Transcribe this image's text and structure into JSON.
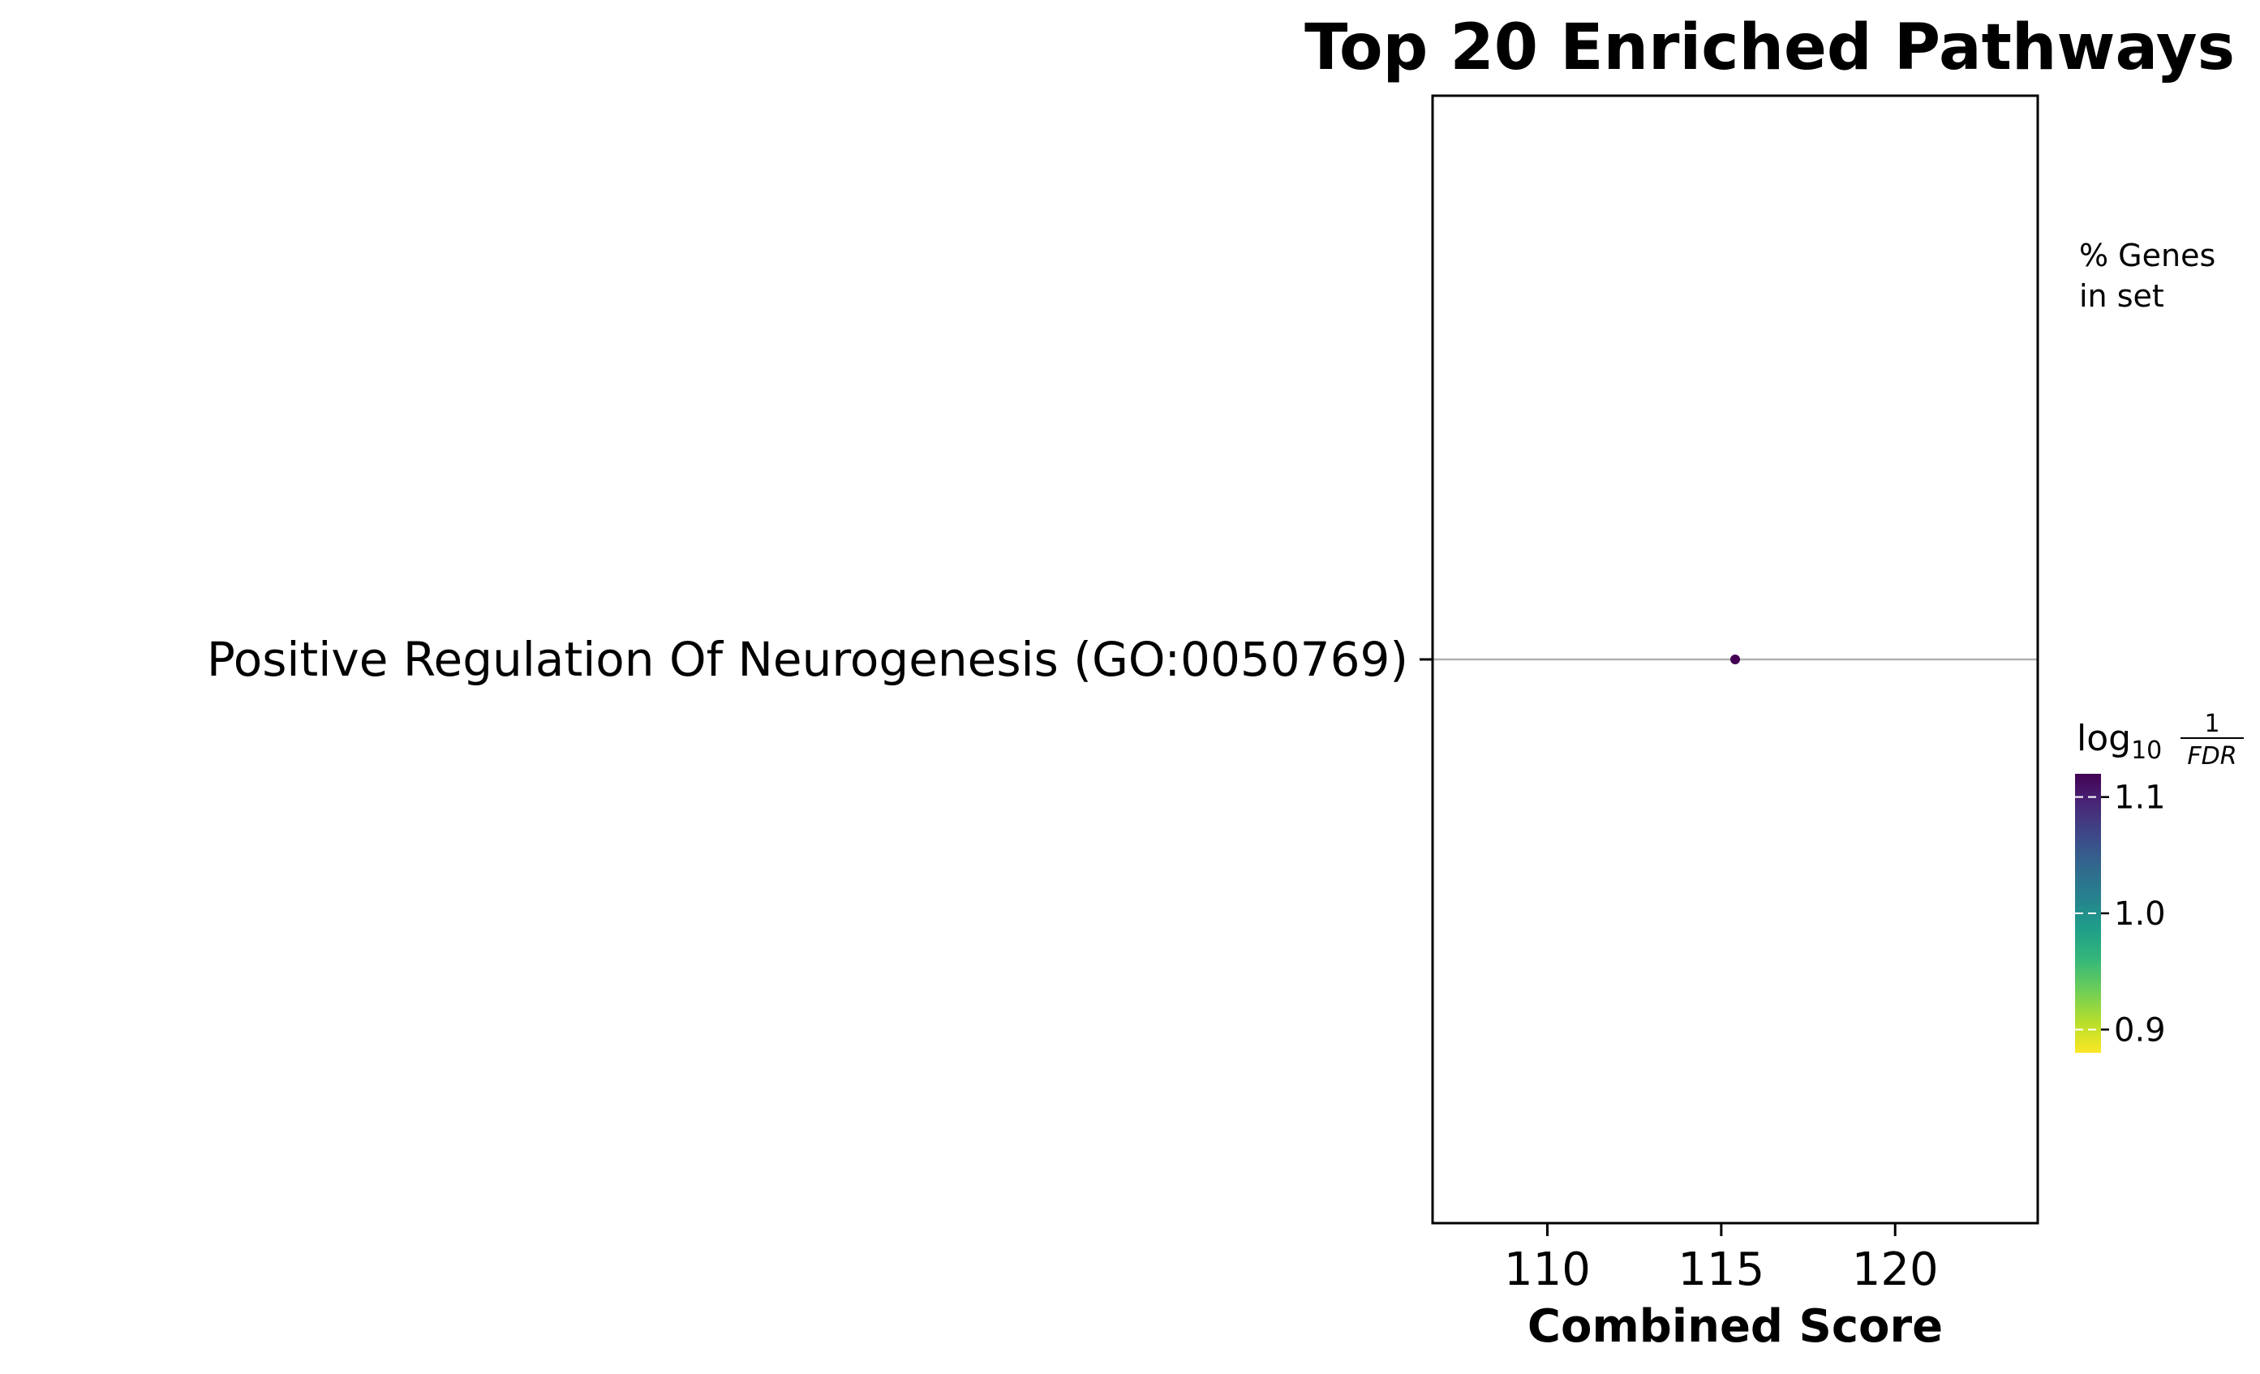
{
  "chart_data": {
    "type": "scatter",
    "title": "Top 20 Enriched Pathways",
    "xlabel": "Combined Score",
    "ylabel": "",
    "xlim": [
      106.7,
      124.1
    ],
    "xticks": [
      110,
      115,
      120
    ],
    "x_tick_labels": [
      "110",
      "115",
      "120"
    ],
    "categories": [
      "Positive Regulation Of Neurogenesis (GO:0050769)"
    ],
    "points": [
      {
        "category": "Positive Regulation Of Neurogenesis (GO:0050769)",
        "x": 115.4,
        "color_value": 1.1
      }
    ],
    "size_legend": {
      "title_lines": [
        "% Genes",
        "in set"
      ]
    },
    "colorbar": {
      "label_main": "log",
      "label_sub": "10",
      "label_frac_num": "1",
      "label_frac_den": "FDR",
      "colormap": "viridis",
      "range": [
        0.88,
        1.12
      ],
      "ticks": [
        0.9,
        1.0,
        1.1
      ],
      "tick_labels": [
        "0.9",
        "1.0",
        "1.1"
      ]
    },
    "grid": "horizontal lines at categories",
    "colors": {
      "point": "#440154",
      "gridline": "#b0b0b0",
      "axis": "#000000",
      "viridis": [
        "#fde725",
        "#b5de2b",
        "#6ece58",
        "#35b779",
        "#1f9e89",
        "#26828e",
        "#31688e",
        "#3e4989",
        "#482878",
        "#440154"
      ]
    }
  }
}
